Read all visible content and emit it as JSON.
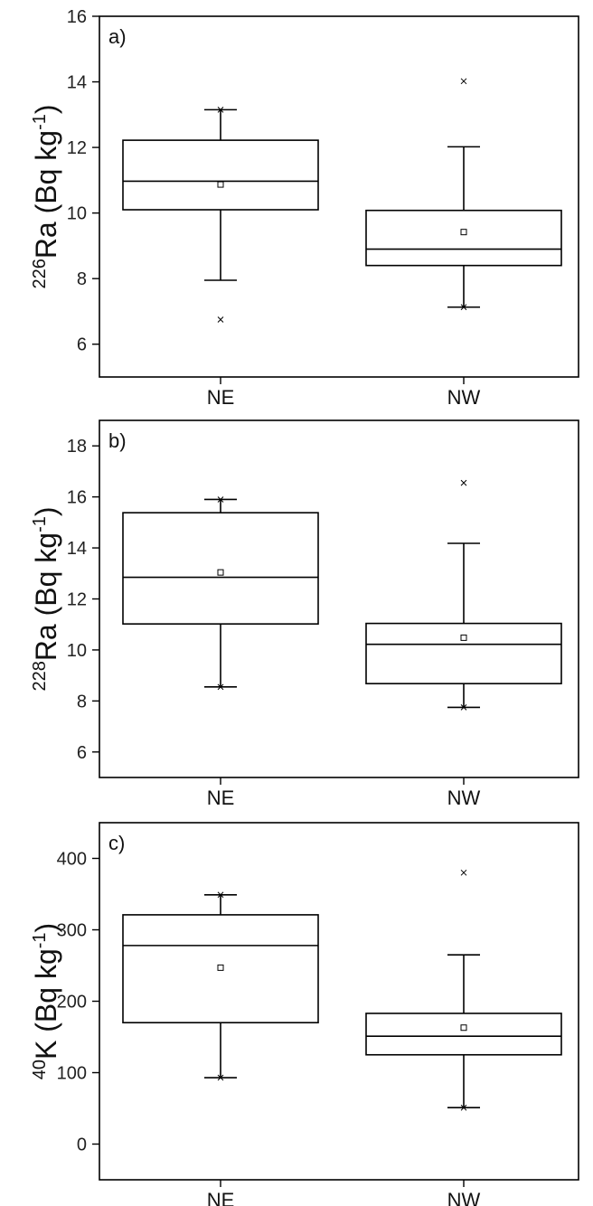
{
  "chart_data": [
    {
      "type": "box",
      "panel_label": "a)",
      "ylabel": {
        "isotope_mass": "226",
        "element": "Ra",
        "unit_prefix": " (Bq kg",
        "unit_exponent": "-1",
        "unit_suffix": ")"
      },
      "ylim": [
        5,
        16
      ],
      "yticks": [
        6,
        8,
        10,
        12,
        14,
        16
      ],
      "categories": [
        "NE",
        "NW"
      ],
      "boxes": [
        {
          "category": "NE",
          "whisker_low": 7.95,
          "q1": 10.1,
          "median": 10.97,
          "q3": 12.22,
          "whisker_high": 13.15,
          "mean": 10.87,
          "extremes": [
            6.75,
            13.15
          ]
        },
        {
          "category": "NW",
          "whisker_low": 7.13,
          "q1": 8.4,
          "median": 8.9,
          "q3": 10.08,
          "whisker_high": 12.02,
          "mean": 9.42,
          "extremes": [
            7.13,
            14.02
          ]
        }
      ]
    },
    {
      "type": "box",
      "panel_label": "b)",
      "ylabel": {
        "isotope_mass": "228",
        "element": "Ra",
        "unit_prefix": " (Bq kg",
        "unit_exponent": "-1",
        "unit_suffix": ")"
      },
      "ylim": [
        5,
        19
      ],
      "yticks": [
        6,
        8,
        10,
        12,
        14,
        16,
        18
      ],
      "categories": [
        "NE",
        "NW"
      ],
      "boxes": [
        {
          "category": "NE",
          "whisker_low": 8.55,
          "q1": 11.02,
          "median": 12.85,
          "q3": 15.38,
          "whisker_high": 15.9,
          "mean": 13.04,
          "extremes": [
            8.55,
            15.9
          ]
        },
        {
          "category": "NW",
          "whisker_low": 7.75,
          "q1": 8.68,
          "median": 10.22,
          "q3": 11.04,
          "whisker_high": 14.18,
          "mean": 10.48,
          "extremes": [
            7.75,
            16.55
          ]
        }
      ]
    },
    {
      "type": "box",
      "panel_label": "c)",
      "ylabel": {
        "isotope_mass": "40",
        "element": "K",
        "unit_prefix": " (Bq kg",
        "unit_exponent": "-1",
        "unit_suffix": ")"
      },
      "ylim": [
        -50,
        450
      ],
      "yticks": [
        0,
        100,
        200,
        300,
        400
      ],
      "categories": [
        "NE",
        "NW"
      ],
      "boxes": [
        {
          "category": "NE",
          "whisker_low": 93,
          "q1": 170,
          "median": 278,
          "q3": 321,
          "whisker_high": 349,
          "mean": 247,
          "extremes": [
            93,
            349
          ]
        },
        {
          "category": "NW",
          "whisker_low": 51,
          "q1": 125,
          "median": 151,
          "q3": 183,
          "whisker_high": 265,
          "mean": 163,
          "extremes": [
            51,
            380
          ]
        }
      ]
    }
  ]
}
